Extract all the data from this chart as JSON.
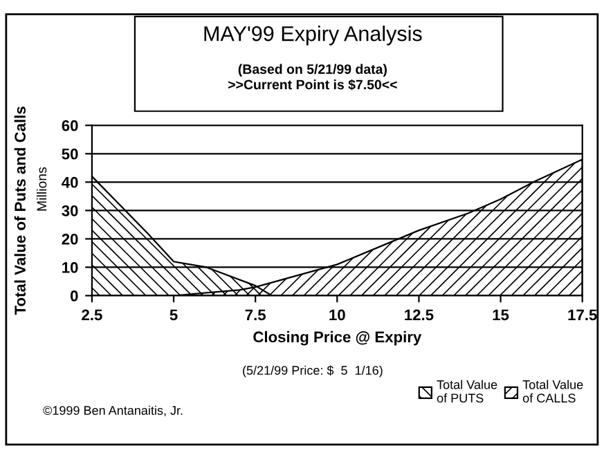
{
  "chart_data": {
    "type": "area",
    "title": "MAY'99 Expiry Analysis",
    "subtitle": "(Based on 5/21/99 data)\n>>Current Point is $7.50<<",
    "xlabel": "Closing Price @ Expiry",
    "ylabel": "Total Value of Puts and Calls",
    "y2label": "Millions",
    "series": [
      {
        "name": "Total Value\nof PUTS",
        "color": "#000000",
        "x": [
          2.5,
          4.2,
          5,
          6,
          7.5,
          8
        ],
        "values": [
          42,
          22,
          12,
          10,
          3.5,
          0
        ]
      },
      {
        "name": "Total Value\nof CALLS",
        "color": "#000000",
        "x": [
          2.5,
          5,
          6,
          7,
          7.5,
          10,
          12.5,
          14,
          15,
          16,
          17.5
        ],
        "values": [
          0,
          0,
          1,
          2,
          3,
          11,
          23,
          29,
          34,
          40,
          48
        ]
      }
    ],
    "xlim": [
      2.5,
      17.5
    ],
    "xticks": [
      2.5,
      5,
      7.5,
      10,
      12.5,
      15,
      17.5
    ],
    "ylim": [
      0,
      60
    ],
    "yticks": [
      0,
      10,
      20,
      30,
      40,
      50,
      60
    ],
    "grid": "y",
    "legend": "bottom right",
    "annotations": [
      "(5/21/99 Price: $  5  1/16)",
      "©1999 Ben Antanaitis, Jr."
    ]
  }
}
